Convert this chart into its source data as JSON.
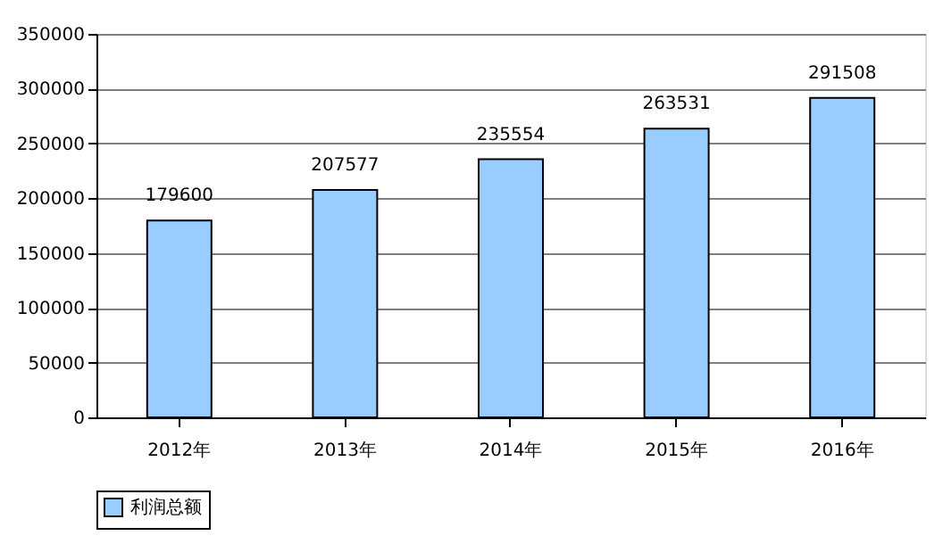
{
  "chart_data": {
    "type": "bar",
    "categories": [
      "2012年",
      "2013年",
      "2014年",
      "2015年",
      "2016年"
    ],
    "series": [
      {
        "name": "利润总额",
        "color": "#99ccff",
        "values": [
          179600,
          207577,
          235554,
          263531,
          291508
        ]
      }
    ],
    "ylim": [
      0,
      350000
    ],
    "yticks": [
      0,
      50000,
      100000,
      150000,
      200000,
      250000,
      300000,
      350000
    ],
    "grid": "y",
    "legend": "bottom",
    "data_labels": true
  }
}
